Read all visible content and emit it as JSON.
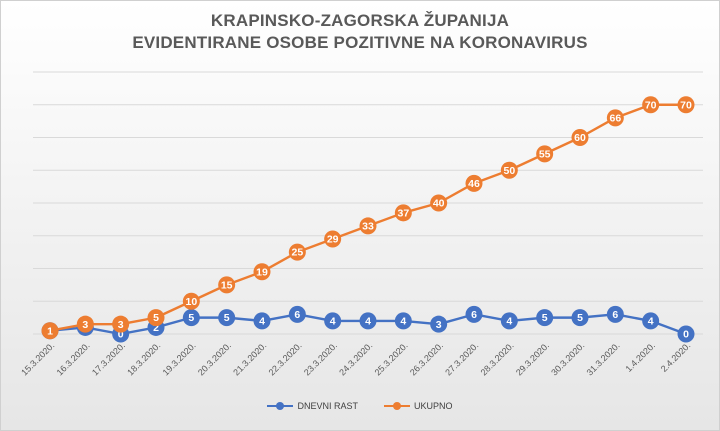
{
  "chart_data": {
    "type": "line",
    "title_line1": "KRAPINSKO-ZAGORSKA ŽUPANIJA",
    "title_line2": "EVIDENTIRANE OSOBE POZITIVNE NA KORONAVIRUS",
    "categories": [
      "15.3.2020.",
      "16.3.2020.",
      "17.3.2020.",
      "18.3.2020.",
      "19.3.2020.",
      "20.3.2020.",
      "21.3.2020.",
      "22.3.2020.",
      "23.3.2020.",
      "24.3.2020.",
      "25.3.2020.",
      "26.3.2020.",
      "27.3.2020.",
      "28.3.2020.",
      "29.3.2020.",
      "30.3.2020.",
      "31.3.2020.",
      "1.4.2020.",
      "2.4.2020."
    ],
    "series": [
      {
        "name": "DNEVNI RAST",
        "color": "#4472C4",
        "values": [
          1,
          2,
          0,
          2,
          5,
          5,
          4,
          6,
          4,
          4,
          4,
          3,
          6,
          4,
          5,
          5,
          6,
          4,
          0
        ]
      },
      {
        "name": "UKUPNO",
        "color": "#ED7D31",
        "values": [
          1,
          3,
          3,
          5,
          10,
          15,
          19,
          25,
          29,
          33,
          37,
          40,
          46,
          50,
          55,
          60,
          66,
          70,
          70
        ]
      }
    ],
    "ylim": [
      0,
      80
    ],
    "y_gridlines": [
      0,
      10,
      20,
      30,
      40,
      50,
      60,
      70,
      80
    ],
    "grid": true,
    "data_labels": true,
    "legend_position": "bottom"
  }
}
